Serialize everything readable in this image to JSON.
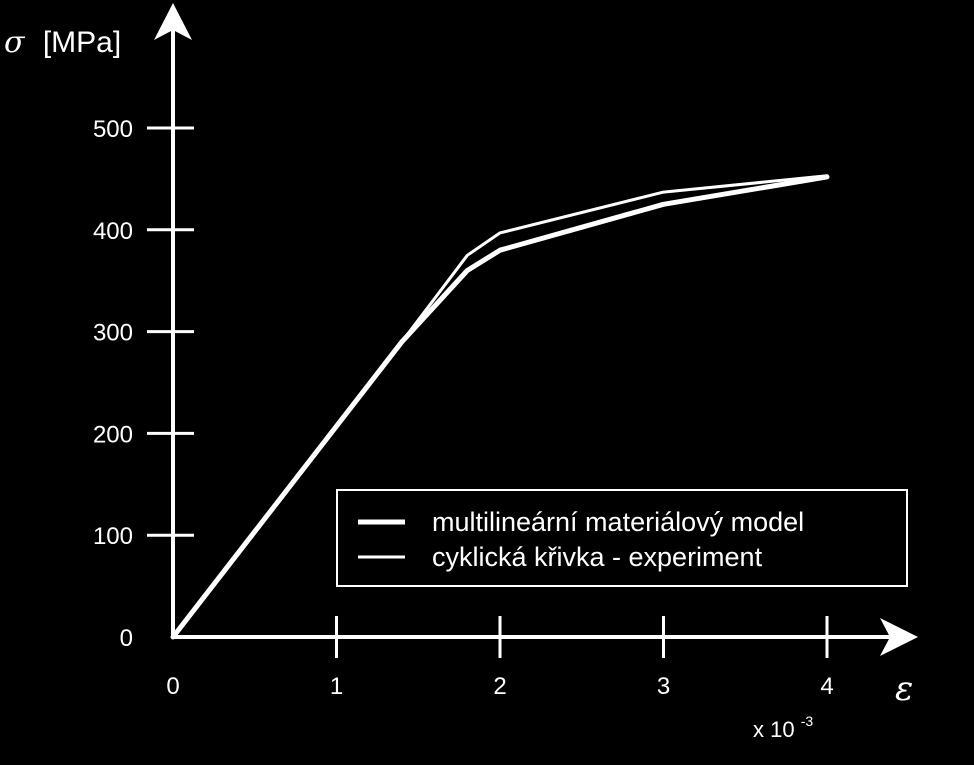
{
  "chart_data": {
    "type": "line",
    "xlabel_symbol": "ε",
    "ylabel_symbol": "σ",
    "ylabel_unit": "[MPa]",
    "x_multiplier": {
      "base": "x 10",
      "exponent": "-3"
    },
    "xlim": [
      0,
      4
    ],
    "ylim": [
      0,
      500
    ],
    "x_ticks": [
      0,
      1,
      2,
      3,
      4
    ],
    "y_ticks": [
      0,
      100,
      200,
      300,
      400,
      500
    ],
    "legend": {
      "placement": "lower-right"
    },
    "series": [
      {
        "name": "multilineární materiálový model",
        "line": "thick",
        "x": [
          0,
          1.4,
          1.8,
          2.0,
          3.0,
          4.0
        ],
        "y": [
          0,
          290,
          360,
          380,
          425,
          452
        ]
      },
      {
        "name": "cyklická křivka - experiment",
        "line": "thin",
        "x": [
          0,
          1.4,
          1.8,
          2.0,
          3.0,
          4.0
        ],
        "y": [
          0,
          290,
          375,
          397,
          437,
          453
        ]
      }
    ],
    "colors": {
      "background": "#000000",
      "foreground": "#ffffff"
    }
  }
}
